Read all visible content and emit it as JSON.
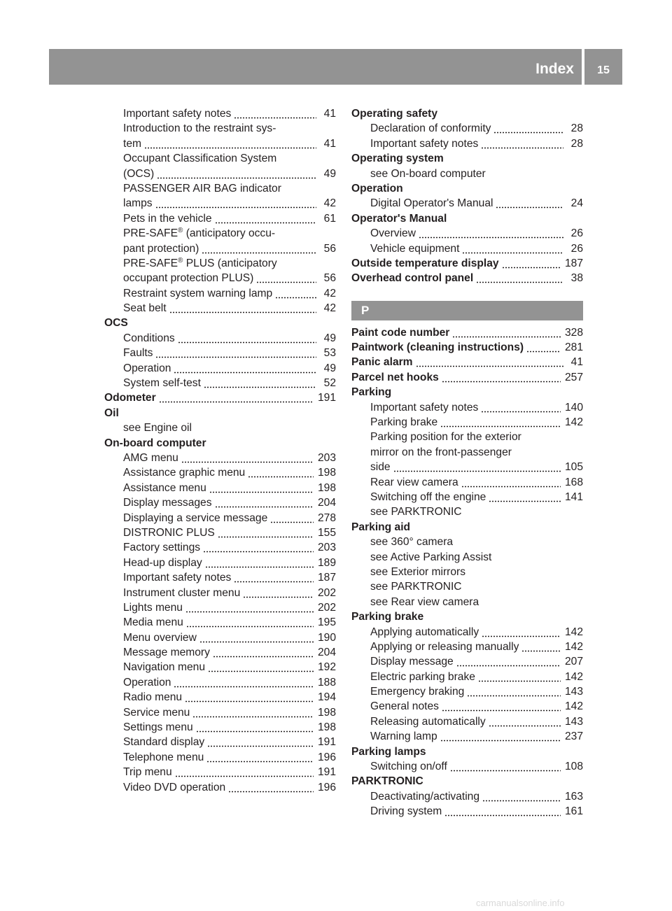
{
  "header": {
    "title": "Index",
    "page": "15",
    "color": "#939393"
  },
  "watermark": "carmanualsonline.info",
  "columns": [
    [
      {
        "lvl": 1,
        "lines": [
          "Important safety notes"
        ],
        "page": "41"
      },
      {
        "lvl": 1,
        "lines": [
          "Introduction to the restraint sys-",
          "tem"
        ],
        "page": "41"
      },
      {
        "lvl": 1,
        "lines": [
          "Occupant Classification System",
          "(OCS)"
        ],
        "page": "49"
      },
      {
        "lvl": 1,
        "lines": [
          "PASSENGER AIR BAG indicator",
          "lamps"
        ],
        "page": "42"
      },
      {
        "lvl": 1,
        "lines": [
          "Pets in the vehicle"
        ],
        "page": "61"
      },
      {
        "lvl": 1,
        "lines": [
          "PRE-SAFE® (anticipatory occu-",
          "pant protection)"
        ],
        "page": "56"
      },
      {
        "lvl": 1,
        "lines": [
          "PRE-SAFE® PLUS (anticipatory",
          "occupant protection PLUS)"
        ],
        "page": "56"
      },
      {
        "lvl": 1,
        "lines": [
          "Restraint system warning lamp"
        ],
        "page": "42"
      },
      {
        "lvl": 1,
        "lines": [
          "Seat belt"
        ],
        "page": "42"
      },
      {
        "lvl": 0,
        "lines": [
          "OCS"
        ]
      },
      {
        "lvl": 1,
        "lines": [
          "Conditions"
        ],
        "page": "49"
      },
      {
        "lvl": 1,
        "lines": [
          "Faults"
        ],
        "page": "53"
      },
      {
        "lvl": 1,
        "lines": [
          "Operation"
        ],
        "page": "49"
      },
      {
        "lvl": 1,
        "lines": [
          "System self-test"
        ],
        "page": "52"
      },
      {
        "lvl": 0,
        "lines": [
          "Odometer"
        ],
        "page": "191"
      },
      {
        "lvl": 0,
        "lines": [
          "Oil"
        ]
      },
      {
        "lvl": 1,
        "lines": [
          "see Engine oil"
        ]
      },
      {
        "lvl": 0,
        "lines": [
          "On-board computer"
        ]
      },
      {
        "lvl": 1,
        "lines": [
          "AMG menu"
        ],
        "page": "203"
      },
      {
        "lvl": 1,
        "lines": [
          "Assistance graphic menu"
        ],
        "page": "198"
      },
      {
        "lvl": 1,
        "lines": [
          "Assistance menu"
        ],
        "page": "198"
      },
      {
        "lvl": 1,
        "lines": [
          "Display messages"
        ],
        "page": "204"
      },
      {
        "lvl": 1,
        "lines": [
          "Displaying a service message"
        ],
        "page": "278"
      },
      {
        "lvl": 1,
        "lines": [
          "DISTRONIC PLUS"
        ],
        "page": "155"
      },
      {
        "lvl": 1,
        "lines": [
          "Factory settings"
        ],
        "page": "203"
      },
      {
        "lvl": 1,
        "lines": [
          "Head-up display"
        ],
        "page": "189"
      },
      {
        "lvl": 1,
        "lines": [
          "Important safety notes"
        ],
        "page": "187"
      },
      {
        "lvl": 1,
        "lines": [
          "Instrument cluster menu"
        ],
        "page": "202"
      },
      {
        "lvl": 1,
        "lines": [
          "Lights menu"
        ],
        "page": "202"
      },
      {
        "lvl": 1,
        "lines": [
          "Media menu"
        ],
        "page": "195"
      },
      {
        "lvl": 1,
        "lines": [
          "Menu overview"
        ],
        "page": "190"
      },
      {
        "lvl": 1,
        "lines": [
          "Message memory"
        ],
        "page": "204"
      },
      {
        "lvl": 1,
        "lines": [
          "Navigation menu"
        ],
        "page": "192"
      },
      {
        "lvl": 1,
        "lines": [
          "Operation"
        ],
        "page": "188"
      },
      {
        "lvl": 1,
        "lines": [
          "Radio menu"
        ],
        "page": "194"
      },
      {
        "lvl": 1,
        "lines": [
          "Service menu"
        ],
        "page": "198"
      },
      {
        "lvl": 1,
        "lines": [
          "Settings menu"
        ],
        "page": "198"
      },
      {
        "lvl": 1,
        "lines": [
          "Standard display"
        ],
        "page": "191"
      },
      {
        "lvl": 1,
        "lines": [
          "Telephone menu"
        ],
        "page": "196"
      },
      {
        "lvl": 1,
        "lines": [
          "Trip menu"
        ],
        "page": "191"
      },
      {
        "lvl": 1,
        "lines": [
          "Video DVD operation"
        ],
        "page": "196"
      }
    ],
    [
      {
        "lvl": 0,
        "lines": [
          "Operating safety"
        ]
      },
      {
        "lvl": 1,
        "lines": [
          "Declaration of conformity"
        ],
        "page": "28"
      },
      {
        "lvl": 1,
        "lines": [
          "Important safety notes"
        ],
        "page": "28"
      },
      {
        "lvl": 0,
        "lines": [
          "Operating system"
        ]
      },
      {
        "lvl": 1,
        "lines": [
          "see On-board computer"
        ]
      },
      {
        "lvl": 0,
        "lines": [
          "Operation"
        ]
      },
      {
        "lvl": 1,
        "lines": [
          "Digital Operator's Manual"
        ],
        "page": "24"
      },
      {
        "lvl": 0,
        "lines": [
          "Operator's Manual"
        ]
      },
      {
        "lvl": 1,
        "lines": [
          "Overview"
        ],
        "page": "26"
      },
      {
        "lvl": 1,
        "lines": [
          "Vehicle equipment"
        ],
        "page": "26"
      },
      {
        "lvl": 0,
        "lines": [
          "Outside temperature display"
        ],
        "page": "187"
      },
      {
        "lvl": 0,
        "lines": [
          "Overhead control panel"
        ],
        "page": "38"
      },
      {
        "section": "P"
      },
      {
        "lvl": 0,
        "lines": [
          "Paint code number"
        ],
        "page": "328"
      },
      {
        "lvl": 0,
        "lines": [
          "Paintwork (cleaning instructions)"
        ],
        "page": "281"
      },
      {
        "lvl": 0,
        "lines": [
          "Panic alarm"
        ],
        "page": "41"
      },
      {
        "lvl": 0,
        "lines": [
          "Parcel net hooks"
        ],
        "page": "257"
      },
      {
        "lvl": 0,
        "lines": [
          "Parking"
        ]
      },
      {
        "lvl": 1,
        "lines": [
          "Important safety notes"
        ],
        "page": "140"
      },
      {
        "lvl": 1,
        "lines": [
          "Parking brake"
        ],
        "page": "142"
      },
      {
        "lvl": 1,
        "lines": [
          "Parking position for the exterior",
          "mirror on the front-passenger",
          "side"
        ],
        "page": "105"
      },
      {
        "lvl": 1,
        "lines": [
          "Rear view camera"
        ],
        "page": "168"
      },
      {
        "lvl": 1,
        "lines": [
          "Switching off the engine"
        ],
        "page": "141"
      },
      {
        "lvl": 1,
        "lines": [
          "see PARKTRONIC"
        ]
      },
      {
        "lvl": 0,
        "lines": [
          "Parking aid"
        ]
      },
      {
        "lvl": 1,
        "lines": [
          "see 360° camera"
        ]
      },
      {
        "lvl": 1,
        "lines": [
          "see Active Parking Assist"
        ]
      },
      {
        "lvl": 1,
        "lines": [
          "see Exterior mirrors"
        ]
      },
      {
        "lvl": 1,
        "lines": [
          "see PARKTRONIC"
        ]
      },
      {
        "lvl": 1,
        "lines": [
          "see Rear view camera"
        ]
      },
      {
        "lvl": 0,
        "lines": [
          "Parking brake"
        ]
      },
      {
        "lvl": 1,
        "lines": [
          "Applying automatically"
        ],
        "page": "142"
      },
      {
        "lvl": 1,
        "lines": [
          "Applying or releasing manually"
        ],
        "page": "142"
      },
      {
        "lvl": 1,
        "lines": [
          "Display message"
        ],
        "page": "207"
      },
      {
        "lvl": 1,
        "lines": [
          "Electric parking brake"
        ],
        "page": "142"
      },
      {
        "lvl": 1,
        "lines": [
          "Emergency braking"
        ],
        "page": "143"
      },
      {
        "lvl": 1,
        "lines": [
          "General notes"
        ],
        "page": "142"
      },
      {
        "lvl": 1,
        "lines": [
          "Releasing automatically"
        ],
        "page": "143"
      },
      {
        "lvl": 1,
        "lines": [
          "Warning lamp"
        ],
        "page": "237"
      },
      {
        "lvl": 0,
        "lines": [
          "Parking lamps"
        ]
      },
      {
        "lvl": 1,
        "lines": [
          "Switching on/off"
        ],
        "page": "108"
      },
      {
        "lvl": 0,
        "lines": [
          "PARKTRONIC"
        ]
      },
      {
        "lvl": 1,
        "lines": [
          "Deactivating/activating"
        ],
        "page": "163"
      },
      {
        "lvl": 1,
        "lines": [
          "Driving system"
        ],
        "page": "161"
      }
    ]
  ]
}
